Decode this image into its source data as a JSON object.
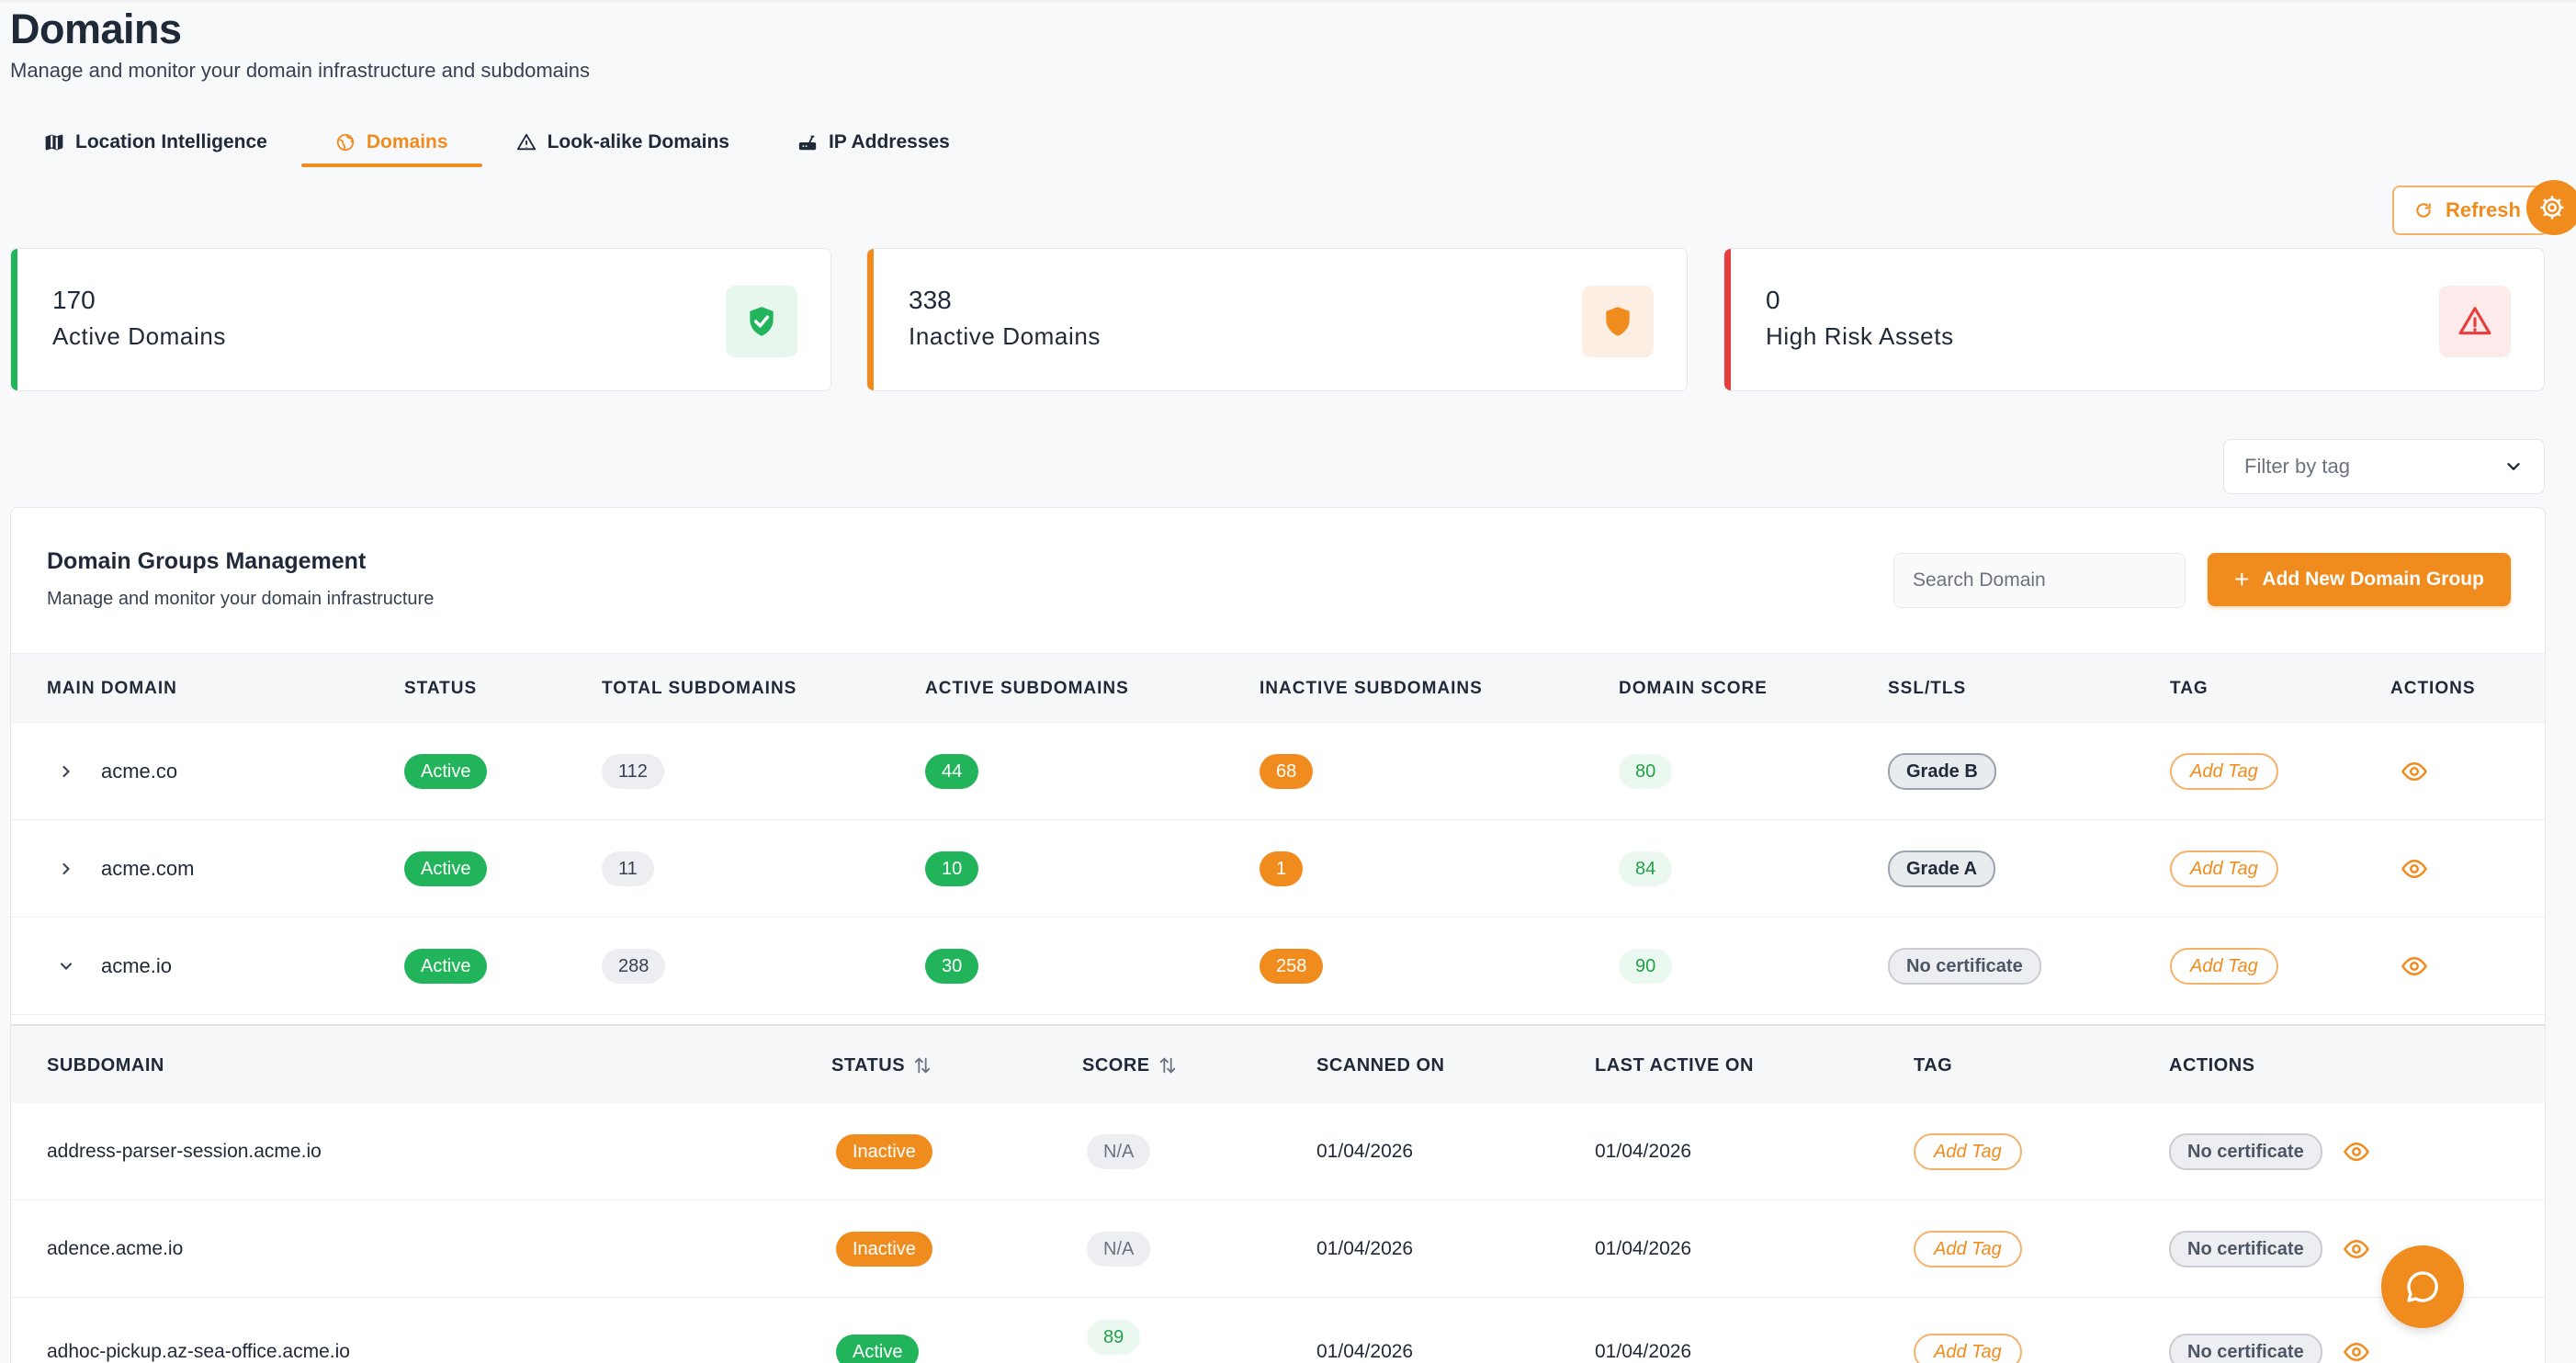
{
  "colors": {
    "accent": "#f08c1e",
    "success": "#22b45a",
    "danger": "#e53e3e"
  },
  "header": {
    "title": "Domains",
    "subtitle": "Manage and monitor your domain infrastructure and subdomains"
  },
  "tabs": [
    {
      "label": "Location Intelligence",
      "icon": "map-icon",
      "active": false
    },
    {
      "label": "Domains",
      "icon": "globe-icon",
      "active": true
    },
    {
      "label": "Look-alike Domains",
      "icon": "warning-icon",
      "active": false
    },
    {
      "label": "IP Addresses",
      "icon": "router-icon",
      "active": false
    }
  ],
  "toolbar": {
    "refresh_label": "Refresh"
  },
  "stats": [
    {
      "value": "170",
      "label": "Active Domains",
      "icon": "shield-check-icon"
    },
    {
      "value": "338",
      "label": "Inactive Domains",
      "icon": "shield-icon"
    },
    {
      "value": "0",
      "label": "High Risk Assets",
      "icon": "warning-icon"
    }
  ],
  "filter": {
    "placeholder": "Filter by tag"
  },
  "panel": {
    "title": "Domain Groups Management",
    "subtitle": "Manage and monitor your domain infrastructure",
    "search_placeholder": "Search Domain",
    "add_label": "Add New Domain Group"
  },
  "table": {
    "columns": [
      "MAIN DOMAIN",
      "STATUS",
      "TOTAL SUBDOMAINS",
      "ACTIVE SUBDOMAINS",
      "INACTIVE SUBDOMAINS",
      "DOMAIN SCORE",
      "SSL/TLS",
      "TAG",
      "ACTIONS"
    ],
    "rows": [
      {
        "domain": "acme.co",
        "status": "Active",
        "total": "112",
        "active": "44",
        "inactive": "68",
        "score": "80",
        "ssl": "Grade B",
        "tag": "Add Tag",
        "expanded": false
      },
      {
        "domain": "acme.com",
        "status": "Active",
        "total": "11",
        "active": "10",
        "inactive": "1",
        "score": "84",
        "ssl": "Grade A",
        "tag": "Add Tag",
        "expanded": false
      },
      {
        "domain": "acme.io",
        "status": "Active",
        "total": "288",
        "active": "30",
        "inactive": "258",
        "score": "90",
        "ssl": "No certificate",
        "tag": "Add Tag",
        "expanded": true
      }
    ]
  },
  "subtable": {
    "columns": [
      "SUBDOMAIN",
      "STATUS",
      "SCORE",
      "SCANNED ON",
      "LAST ACTIVE ON",
      "TAG",
      "ACTIONS"
    ],
    "rows": [
      {
        "subdomain": "address-parser-session.acme.io",
        "status": "Inactive",
        "score": "N/A",
        "scanned": "01/04/2026",
        "last_active": "01/04/2026",
        "tag": "Add Tag",
        "ssl": "No certificate"
      },
      {
        "subdomain": "adence.acme.io",
        "status": "Inactive",
        "score": "N/A",
        "scanned": "01/04/2026",
        "last_active": "01/04/2026",
        "tag": "Add Tag",
        "ssl": "No certificate"
      },
      {
        "subdomain": "adhoc-pickup.az-sea-office.acme.io",
        "status": "Active",
        "score": "89",
        "scanned": "01/04/2026",
        "last_active": "01/04/2026",
        "tag": "Add Tag",
        "ssl": "No certificate"
      }
    ]
  }
}
